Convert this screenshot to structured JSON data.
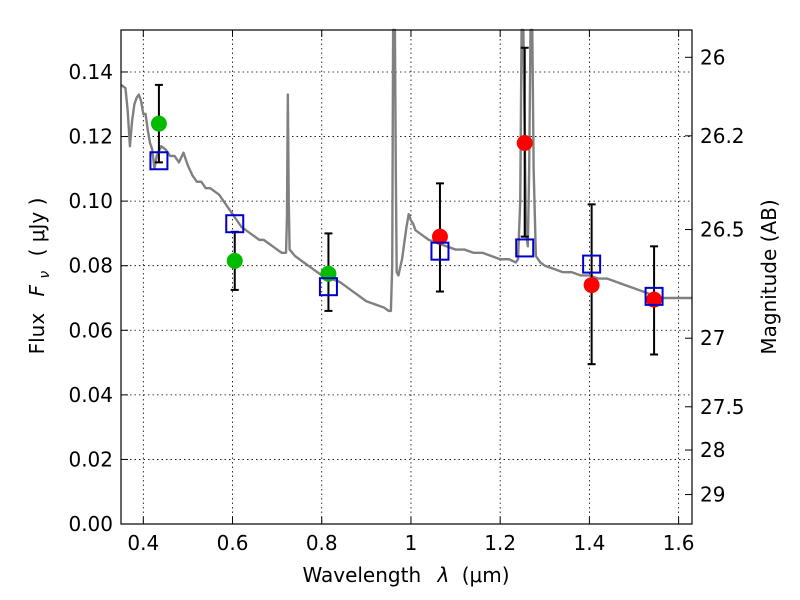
{
  "chart_data": {
    "type": "scatter",
    "title": "",
    "xlabel_text": "Wavelength",
    "xlabel_symbol": "λ",
    "xlabel_unit": "(μm)",
    "ylabel_text": "Flux",
    "ylabel_symbol": "F",
    "ylabel_subscript": "ν",
    "ylabel_unit": "( μJy )",
    "y2label": "Magnitude (AB)",
    "xlim": [
      0.35,
      1.63
    ],
    "ylim": [
      0.0,
      0.153
    ],
    "x_ticks": [
      0.4,
      0.6,
      0.8,
      1.0,
      1.2,
      1.4,
      1.6
    ],
    "x_tick_labels": [
      "0.4",
      "0.6",
      "0.8",
      "1",
      "1.2",
      "1.4",
      "1.6"
    ],
    "y_ticks": [
      0.0,
      0.02,
      0.04,
      0.06,
      0.08,
      0.1,
      0.12,
      0.14
    ],
    "y_tick_labels": [
      "0.00",
      "0.02",
      "0.04",
      "0.06",
      "0.08",
      "0.10",
      "0.12",
      "0.14"
    ],
    "y2_ticks": [
      {
        "mag": 26,
        "label": "26"
      },
      {
        "mag": 26.2,
        "label": "26.2"
      },
      {
        "mag": 26.5,
        "label": "26.5"
      },
      {
        "mag": 27,
        "label": "27"
      },
      {
        "mag": 27.5,
        "label": "27.5"
      },
      {
        "mag": 28,
        "label": "28"
      },
      {
        "mag": 29,
        "label": "29"
      }
    ],
    "grid": true,
    "colors": {
      "model": "#808080",
      "green": "#00bb00",
      "red": "#ff0000",
      "model_box": "#0000cc",
      "errorbar": "#000000"
    },
    "series": [
      {
        "marker": "line",
        "color": "#808080",
        "points": [
          [
            0.35,
            0.136
          ],
          [
            0.36,
            0.135
          ],
          [
            0.365,
            0.128
          ],
          [
            0.37,
            0.117
          ],
          [
            0.375,
            0.125
          ],
          [
            0.38,
            0.13
          ],
          [
            0.385,
            0.132
          ],
          [
            0.39,
            0.133
          ],
          [
            0.395,
            0.131
          ],
          [
            0.4,
            0.127
          ],
          [
            0.405,
            0.127
          ],
          [
            0.41,
            0.122
          ],
          [
            0.415,
            0.118
          ],
          [
            0.42,
            0.116
          ],
          [
            0.425,
            0.11
          ],
          [
            0.43,
            0.114
          ],
          [
            0.44,
            0.117
          ],
          [
            0.45,
            0.116
          ],
          [
            0.46,
            0.114
          ],
          [
            0.47,
            0.114
          ],
          [
            0.48,
            0.112
          ],
          [
            0.49,
            0.115
          ],
          [
            0.5,
            0.111
          ],
          [
            0.51,
            0.108
          ],
          [
            0.52,
            0.106
          ],
          [
            0.53,
            0.106
          ],
          [
            0.54,
            0.104
          ],
          [
            0.55,
            0.104
          ],
          [
            0.56,
            0.103
          ],
          [
            0.57,
            0.102
          ],
          [
            0.58,
            0.1
          ],
          [
            0.59,
            0.098
          ],
          [
            0.6,
            0.096
          ],
          [
            0.61,
            0.094
          ],
          [
            0.62,
            0.092
          ],
          [
            0.63,
            0.091
          ],
          [
            0.64,
            0.09
          ],
          [
            0.65,
            0.089
          ],
          [
            0.66,
            0.088
          ],
          [
            0.67,
            0.088
          ],
          [
            0.68,
            0.087
          ],
          [
            0.69,
            0.086
          ],
          [
            0.7,
            0.085
          ],
          [
            0.71,
            0.084
          ],
          [
            0.72,
            0.084
          ],
          [
            0.722,
            0.095
          ],
          [
            0.724,
            0.133
          ],
          [
            0.726,
            0.1
          ],
          [
            0.728,
            0.085
          ],
          [
            0.74,
            0.083
          ],
          [
            0.76,
            0.081
          ],
          [
            0.78,
            0.079
          ],
          [
            0.8,
            0.077
          ],
          [
            0.82,
            0.076
          ],
          [
            0.84,
            0.075
          ],
          [
            0.86,
            0.073
          ],
          [
            0.88,
            0.071
          ],
          [
            0.9,
            0.069
          ],
          [
            0.92,
            0.068
          ],
          [
            0.94,
            0.067
          ],
          [
            0.95,
            0.066
          ],
          [
            0.955,
            0.066
          ],
          [
            0.958,
            0.08
          ],
          [
            0.96,
            0.153
          ],
          [
            0.964,
            0.153
          ],
          [
            0.966,
            0.11
          ],
          [
            0.968,
            0.078
          ],
          [
            0.972,
            0.077
          ],
          [
            0.975,
            0.079
          ],
          [
            0.98,
            0.082
          ],
          [
            0.985,
            0.087
          ],
          [
            0.99,
            0.092
          ],
          [
            0.995,
            0.096
          ],
          [
            1.0,
            0.094
          ],
          [
            1.005,
            0.093
          ],
          [
            1.01,
            0.091
          ],
          [
            1.02,
            0.09
          ],
          [
            1.04,
            0.088
          ],
          [
            1.06,
            0.087
          ],
          [
            1.08,
            0.086
          ],
          [
            1.1,
            0.085
          ],
          [
            1.12,
            0.085
          ],
          [
            1.14,
            0.084
          ],
          [
            1.16,
            0.084
          ],
          [
            1.18,
            0.083
          ],
          [
            1.2,
            0.082
          ],
          [
            1.22,
            0.082
          ],
          [
            1.235,
            0.081
          ],
          [
            1.24,
            0.082
          ],
          [
            1.245,
            0.1
          ],
          [
            1.248,
            0.153
          ],
          [
            1.252,
            0.153
          ],
          [
            1.255,
            0.12
          ],
          [
            1.258,
            0.09
          ],
          [
            1.262,
            0.086
          ],
          [
            1.265,
            0.11
          ],
          [
            1.268,
            0.153
          ],
          [
            1.272,
            0.153
          ],
          [
            1.275,
            0.11
          ],
          [
            1.28,
            0.083
          ],
          [
            1.29,
            0.081
          ],
          [
            1.3,
            0.08
          ],
          [
            1.32,
            0.079
          ],
          [
            1.34,
            0.078
          ],
          [
            1.36,
            0.078
          ],
          [
            1.38,
            0.077
          ],
          [
            1.4,
            0.077
          ],
          [
            1.42,
            0.076
          ],
          [
            1.44,
            0.076
          ],
          [
            1.46,
            0.075
          ],
          [
            1.48,
            0.074
          ],
          [
            1.5,
            0.073
          ],
          [
            1.52,
            0.072
          ],
          [
            1.54,
            0.071
          ],
          [
            1.56,
            0.07
          ],
          [
            1.58,
            0.07
          ],
          [
            1.6,
            0.07
          ],
          [
            1.63,
            0.07
          ]
        ]
      },
      {
        "marker": "circle",
        "color": "#00bb00",
        "points": [
          {
            "x": 0.435,
            "y": 0.124,
            "ylo": 0.112,
            "yhi": 0.136
          },
          {
            "x": 0.605,
            "y": 0.0815,
            "ylo": 0.0725,
            "yhi": 0.0905
          },
          {
            "x": 0.815,
            "y": 0.0775,
            "ylo": 0.066,
            "yhi": 0.09
          }
        ]
      },
      {
        "marker": "circle",
        "color": "#ff0000",
        "points": [
          {
            "x": 1.065,
            "y": 0.089,
            "ylo": 0.072,
            "yhi": 0.1055
          },
          {
            "x": 1.255,
            "y": 0.118,
            "ylo": 0.089,
            "yhi": 0.1475
          },
          {
            "x": 1.405,
            "y": 0.074,
            "ylo": 0.0495,
            "yhi": 0.099
          },
          {
            "x": 1.545,
            "y": 0.0695,
            "ylo": 0.0525,
            "yhi": 0.086
          }
        ]
      },
      {
        "marker": "square",
        "color": "#0000cc",
        "points": [
          {
            "x": 0.435,
            "y": 0.1125
          },
          {
            "x": 0.605,
            "y": 0.093
          },
          {
            "x": 0.815,
            "y": 0.0735
          },
          {
            "x": 1.065,
            "y": 0.0845
          },
          {
            "x": 1.255,
            "y": 0.0855
          },
          {
            "x": 1.405,
            "y": 0.0805
          },
          {
            "x": 1.545,
            "y": 0.0705
          }
        ]
      }
    ]
  }
}
